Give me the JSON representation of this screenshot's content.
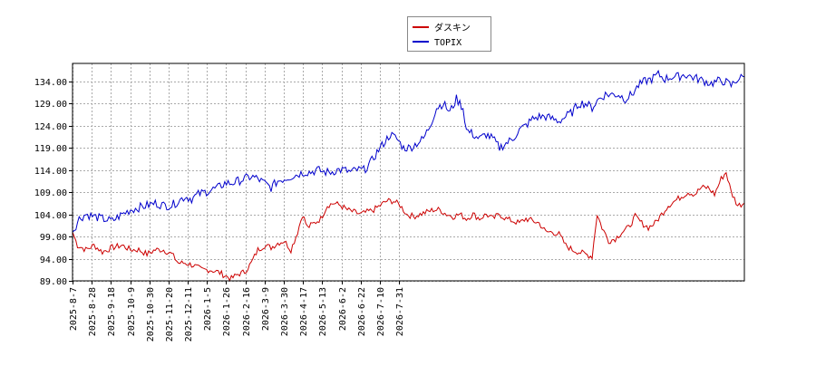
{
  "chart_data": {
    "type": "line",
    "x_ticks": [
      "2025-8-7",
      "2025-8-28",
      "2025-9-18",
      "2025-10-9",
      "2025-10-30",
      "2025-11-20",
      "2025-12-11",
      "2026-1-5",
      "2026-1-26",
      "2026-2-16",
      "2026-3-9",
      "2026-3-30",
      "2026-4-17",
      "2026-5-13",
      "2026-6-2",
      "2026-6-22",
      "2026-7-10",
      "2026-7-31"
    ],
    "y_ticks": [
      "89.00",
      "94.00",
      "99.00",
      "104.00",
      "109.00",
      "114.00",
      "119.00",
      "124.00",
      "129.00",
      "134.00"
    ],
    "ylim": [
      89,
      138
    ],
    "grid": true,
    "legend_position": "top-center",
    "series": [
      {
        "name": "ダスキン",
        "color": "#cc0000",
        "points": [
          [
            0,
            100
          ],
          [
            3,
            97
          ],
          [
            8,
            96
          ],
          [
            13,
            97
          ],
          [
            18,
            95.5
          ],
          [
            24,
            96.5
          ],
          [
            30,
            97
          ],
          [
            35,
            96
          ],
          [
            40,
            96
          ],
          [
            45,
            95
          ],
          [
            50,
            96
          ],
          [
            55,
            96
          ],
          [
            60,
            95
          ],
          [
            64,
            93
          ],
          [
            68,
            93
          ],
          [
            73,
            92.5
          ],
          [
            78,
            91.5
          ],
          [
            83,
            91.5
          ],
          [
            88,
            91
          ],
          [
            93,
            90
          ],
          [
            96,
            89.5
          ],
          [
            100,
            90.5
          ],
          [
            104,
            91
          ],
          [
            108,
            93
          ],
          [
            112,
            96
          ],
          [
            116,
            97
          ],
          [
            120,
            96.5
          ],
          [
            124,
            97.5
          ],
          [
            128,
            98
          ],
          [
            132,
            96
          ],
          [
            136,
            100
          ],
          [
            139,
            104
          ],
          [
            142,
            101
          ],
          [
            146,
            102
          ],
          [
            150,
            103
          ],
          [
            154,
            106
          ],
          [
            158,
            106.5
          ],
          [
            162,
            106
          ],
          [
            166,
            105
          ],
          [
            170,
            104.5
          ],
          [
            174,
            104
          ],
          [
            178,
            104.5
          ],
          [
            182,
            105
          ],
          [
            186,
            106
          ],
          [
            190,
            107
          ],
          [
            194,
            107
          ],
          [
            198,
            106
          ],
          [
            202,
            104
          ],
          [
            206,
            103.5
          ],
          [
            210,
            104
          ],
          [
            214,
            104.5
          ],
          [
            218,
            105
          ],
          [
            222,
            105
          ],
          [
            226,
            104
          ],
          [
            230,
            103.5
          ],
          [
            234,
            104
          ],
          [
            238,
            103
          ],
          [
            242,
            104
          ],
          [
            246,
            103
          ],
          [
            250,
            104
          ],
          [
            254,
            103
          ],
          [
            258,
            104
          ],
          [
            262,
            103
          ],
          [
            266,
            102.5
          ],
          [
            270,
            102
          ],
          [
            274,
            103
          ],
          [
            278,
            102.5
          ],
          [
            282,
            102
          ],
          [
            286,
            100
          ],
          [
            290,
            100
          ],
          [
            294,
            99.5
          ],
          [
            298,
            97
          ],
          [
            302,
            96
          ],
          [
            306,
            95.5
          ],
          [
            310,
            95
          ],
          [
            314,
            94.5
          ],
          [
            317,
            104
          ],
          [
            320,
            101
          ],
          [
            324,
            98
          ],
          [
            328,
            98.5
          ],
          [
            332,
            100
          ],
          [
            336,
            101
          ],
          [
            340,
            103.5
          ],
          [
            344,
            102
          ],
          [
            348,
            101
          ],
          [
            352,
            102
          ],
          [
            356,
            104
          ],
          [
            360,
            106
          ],
          [
            364,
            107
          ],
          [
            368,
            108
          ],
          [
            372,
            109
          ],
          [
            376,
            108.5
          ],
          [
            380,
            110
          ],
          [
            384,
            110
          ],
          [
            388,
            108.5
          ],
          [
            392,
            112
          ],
          [
            395,
            113.5
          ],
          [
            398,
            109
          ],
          [
            402,
            106
          ],
          [
            406,
            106.5
          ]
        ]
      },
      {
        "name": "TOPIX",
        "color": "#0000cc",
        "points": [
          [
            0,
            100
          ],
          [
            4,
            103
          ],
          [
            8,
            104
          ],
          [
            13,
            103.5
          ],
          [
            18,
            103
          ],
          [
            24,
            102.5
          ],
          [
            30,
            104
          ],
          [
            35,
            105
          ],
          [
            40,
            105.5
          ],
          [
            45,
            106
          ],
          [
            50,
            106.5
          ],
          [
            55,
            106
          ],
          [
            60,
            106
          ],
          [
            64,
            107
          ],
          [
            68,
            108
          ],
          [
            72,
            107.5
          ],
          [
            76,
            108.5
          ],
          [
            80,
            109
          ],
          [
            84,
            109.5
          ],
          [
            88,
            110
          ],
          [
            92,
            111
          ],
          [
            96,
            111
          ],
          [
            100,
            111.5
          ],
          [
            104,
            112
          ],
          [
            108,
            112.5
          ],
          [
            112,
            112
          ],
          [
            116,
            111
          ],
          [
            120,
            110
          ],
          [
            124,
            111.5
          ],
          [
            128,
            112
          ],
          [
            132,
            112.5
          ],
          [
            136,
            113
          ],
          [
            140,
            113.5
          ],
          [
            144,
            113.5
          ],
          [
            148,
            114
          ],
          [
            152,
            113.5
          ],
          [
            156,
            113.5
          ],
          [
            160,
            114
          ],
          [
            164,
            114
          ],
          [
            168,
            113.5
          ],
          [
            172,
            114
          ],
          [
            176,
            114
          ],
          [
            180,
            115.5
          ],
          [
            184,
            118
          ],
          [
            188,
            120
          ],
          [
            192,
            122
          ],
          [
            196,
            121
          ],
          [
            200,
            119
          ],
          [
            204,
            119
          ],
          [
            208,
            120
          ],
          [
            212,
            121
          ],
          [
            216,
            124
          ],
          [
            220,
            128
          ],
          [
            224,
            129
          ],
          [
            228,
            127
          ],
          [
            232,
            130
          ],
          [
            236,
            128
          ],
          [
            238,
            123
          ],
          [
            242,
            122
          ],
          [
            246,
            121
          ],
          [
            250,
            122
          ],
          [
            254,
            121
          ],
          [
            258,
            119
          ],
          [
            262,
            120
          ],
          [
            266,
            121
          ],
          [
            270,
            123
          ],
          [
            274,
            124
          ],
          [
            278,
            125.5
          ],
          [
            282,
            126
          ],
          [
            286,
            126
          ],
          [
            290,
            125.5
          ],
          [
            294,
            125
          ],
          [
            298,
            126
          ],
          [
            302,
            127
          ],
          [
            306,
            129
          ],
          [
            310,
            129
          ],
          [
            314,
            128
          ],
          [
            318,
            130
          ],
          [
            322,
            131
          ],
          [
            326,
            131
          ],
          [
            330,
            131
          ],
          [
            334,
            130
          ],
          [
            338,
            131
          ],
          [
            342,
            133
          ],
          [
            346,
            134
          ],
          [
            350,
            134.5
          ],
          [
            354,
            135.5
          ],
          [
            358,
            134.5
          ],
          [
            362,
            135
          ],
          [
            366,
            135
          ],
          [
            370,
            135.5
          ],
          [
            374,
            135
          ],
          [
            378,
            134.5
          ],
          [
            382,
            134
          ],
          [
            386,
            133.5
          ],
          [
            390,
            134
          ],
          [
            394,
            134
          ],
          [
            398,
            133
          ],
          [
            402,
            134.5
          ],
          [
            406,
            135
          ]
        ]
      }
    ],
    "noise": [
      0.7,
      1.0
    ]
  }
}
